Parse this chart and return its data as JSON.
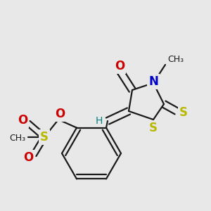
{
  "bg_color": "#e8e8e8",
  "bond_color": "#1a1a1a",
  "bond_width": 1.6,
  "dbo": 0.018,
  "figsize": [
    3.0,
    3.0
  ],
  "dpi": 100,
  "colors": {
    "S": "#b8b800",
    "N": "#0000cc",
    "O": "#cc0000",
    "C": "#1a1a1a",
    "H": "#008080"
  }
}
